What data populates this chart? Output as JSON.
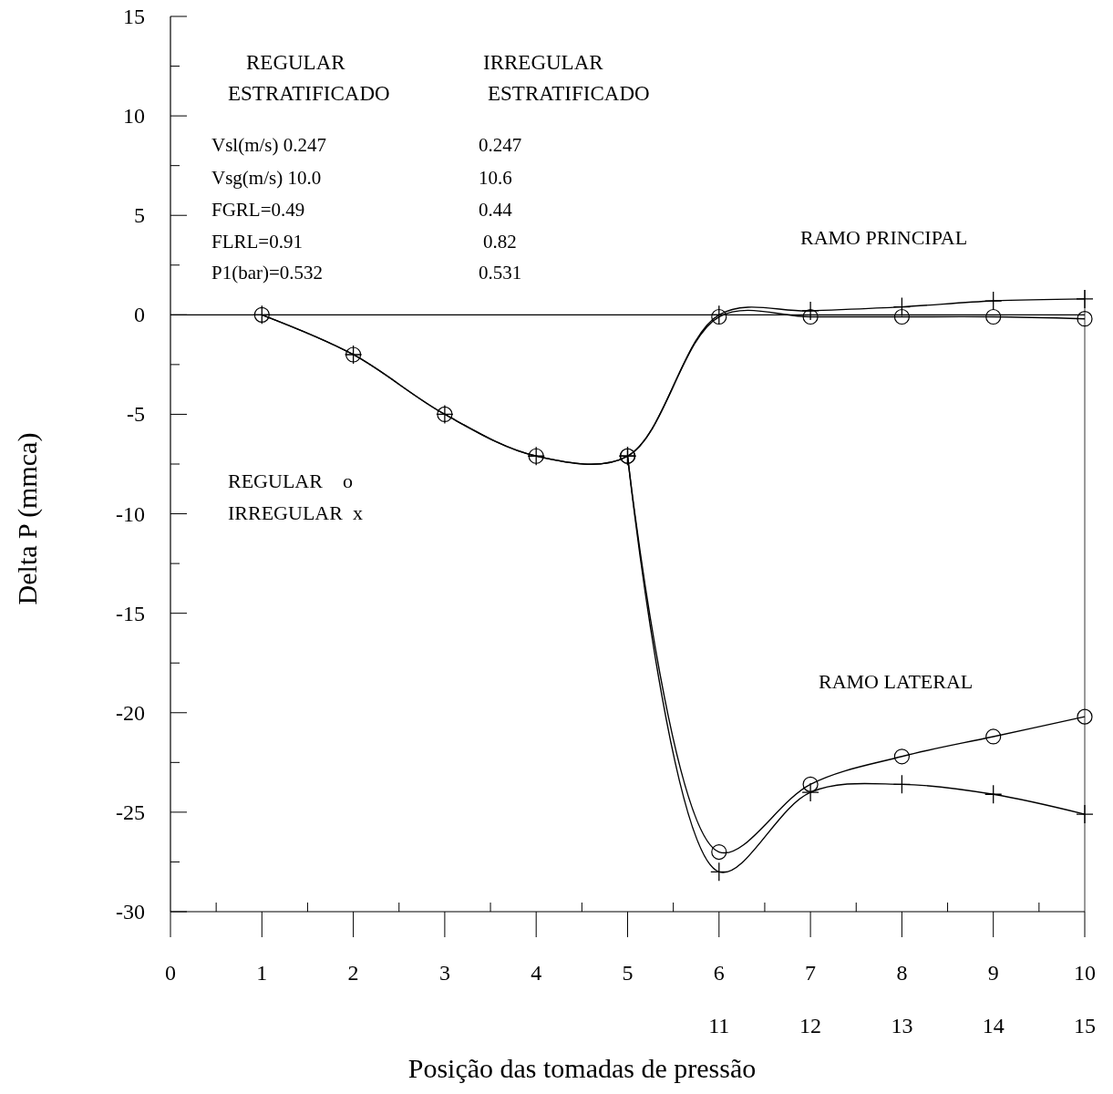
{
  "chart_data": {
    "type": "line",
    "xlabel": "Posição das tomadas de pressão",
    "ylabel": "Delta P (mmca)",
    "xlim": [
      0,
      10
    ],
    "xticks": [
      0,
      {
        "value": 0.5,
        "label": null
      },
      1,
      {
        "value": 1.5,
        "label": null
      },
      2,
      {
        "value": 2.5,
        "label": null
      },
      3,
      {
        "value": 3.5,
        "label": null
      },
      4,
      {
        "value": 4.5,
        "label": null
      },
      5,
      {
        "value": 5.5,
        "label": null
      },
      6,
      {
        "value": 6.5,
        "label": null
      },
      7,
      {
        "value": 7.5,
        "label": null
      },
      8,
      {
        "value": 8.5,
        "label": null
      },
      9,
      {
        "value": 9.5,
        "label": null
      },
      10
    ],
    "x2lim": [
      11,
      15
    ],
    "x2ticks": [
      11,
      12,
      13,
      14,
      15
    ],
    "ylim": [
      -30,
      15
    ],
    "yticks": [
      -30,
      {
        "value": -27.5,
        "label": null
      },
      -25,
      {
        "value": -22.5,
        "label": null
      },
      -20,
      {
        "value": -17.5,
        "label": null
      },
      -15,
      {
        "value": -12.5,
        "label": null
      },
      -10,
      {
        "value": -7.5,
        "label": null
      },
      -5,
      {
        "value": -2.5,
        "label": null
      },
      0,
      {
        "value": 2.5,
        "label": null
      },
      5,
      {
        "value": 7.5,
        "label": null
      },
      10,
      {
        "value": 12.5,
        "label": null
      },
      15
    ],
    "grid": false,
    "ref_lines": [
      {
        "axis": "y",
        "value": 0,
        "label": null,
        "color": "#000000"
      }
    ],
    "series": [
      {
        "color": "#000000",
        "marker": "circle",
        "x": [
          1,
          2,
          3,
          4,
          5,
          6,
          7,
          8,
          9,
          10
        ],
        "values": [
          0,
          -2.0,
          -5.0,
          -7.1,
          -7.1,
          -0.1,
          -0.1,
          -0.1,
          -0.1,
          -0.2
        ]
      },
      {
        "color": "#000000",
        "marker": "cross",
        "x": [
          1,
          2,
          3,
          4,
          5,
          6,
          7,
          8,
          9,
          10
        ],
        "values": [
          0,
          -2.0,
          -5.0,
          -7.1,
          -7.1,
          0,
          0.2,
          0.4,
          0.7,
          0.8
        ]
      },
      {
        "color": "#000000",
        "marker": "circle",
        "x": [
          5,
          6,
          7,
          8,
          9,
          10
        ],
        "values": [
          -7.1,
          -27.0,
          -23.6,
          -22.2,
          -21.2,
          -20.2
        ]
      },
      {
        "color": "#000000",
        "marker": "cross",
        "x": [
          5,
          6,
          7,
          8,
          9,
          10
        ],
        "values": [
          -7.1,
          -28.0,
          -24.0,
          -23.6,
          -24.1,
          -25.1
        ]
      }
    ],
    "annotations": [
      "REGULAR",
      "ESTRATIFICADO",
      "IRREGULAR",
      "ESTRATIFICADO",
      "Vsl(m/s) 0.247",
      "0.247",
      "Vsg(m/s) 10.0",
      "10.6",
      "FGRL=0.49",
      "0.44",
      "FLRL=0.91",
      "0.82",
      "P1(bar)=0.532",
      "0.531",
      "RAMO PRINCIPAL",
      "RAMO LATERAL",
      "REGULAR    o",
      "IRREGULAR  x"
    ]
  }
}
